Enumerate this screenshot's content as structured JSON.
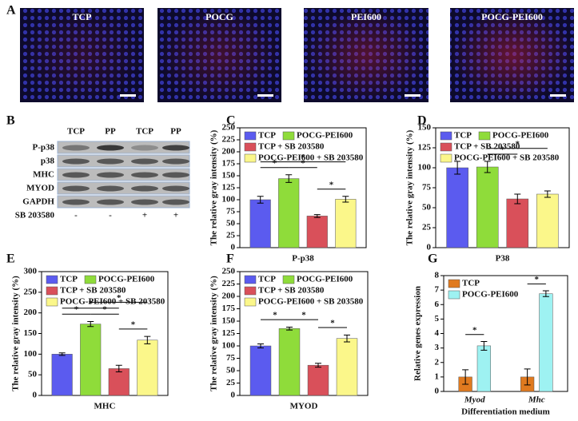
{
  "panel_letters": [
    "A",
    "B",
    "C",
    "D",
    "E",
    "F",
    "G"
  ],
  "images": [
    "TCP",
    "POCG",
    "PEI600",
    "POCG-PEI600"
  ],
  "blot": {
    "columns": [
      "TCP",
      "PP",
      "TCP",
      "PP"
    ],
    "rows": [
      "P-p38",
      "p38",
      "MHC",
      "MYOD",
      "GAPDH"
    ],
    "treatment": "SB 203580",
    "signs": [
      "-",
      "-",
      "+",
      "+"
    ]
  },
  "chart_data": [
    {
      "type": "bar",
      "x_label": "P-p38",
      "y_label": "The relative gray intensity (%)",
      "ylim": [
        0,
        250
      ],
      "yticks": [
        0,
        25,
        50,
        75,
        100,
        125,
        150,
        175,
        200,
        225,
        250
      ],
      "series": [
        {
          "name": "TCP",
          "color": "#5b5bef",
          "values": [
            100
          ],
          "errors": [
            7
          ]
        },
        {
          "name": "POCG-PEI600",
          "color": "#8fdc3a",
          "values": [
            144
          ],
          "errors": [
            8
          ]
        },
        {
          "name": "TCP + SB 203580",
          "color": "#d9505a",
          "values": [
            66
          ],
          "errors": [
            3
          ]
        },
        {
          "name": "POCG-PEI600 + SB 203580",
          "color": "#fbf78a",
          "values": [
            101
          ],
          "errors": [
            6
          ]
        }
      ],
      "significance": [
        {
          "label": "*",
          "between": [
            0,
            1
          ]
        },
        {
          "label": "*",
          "between": [
            1,
            2
          ]
        },
        {
          "label": "*",
          "between": [
            0,
            3
          ]
        },
        {
          "label": "*",
          "between": [
            2,
            3
          ]
        }
      ]
    },
    {
      "type": "bar",
      "x_label": "P38",
      "y_label": "The relative gray intensity (%)",
      "ylim": [
        0,
        150
      ],
      "yticks": [
        0,
        25,
        50,
        75,
        100,
        125,
        150
      ],
      "series": [
        {
          "name": "TCP",
          "color": "#5b5bef",
          "values": [
            100
          ],
          "errors": [
            8
          ]
        },
        {
          "name": "POCG-PEI600",
          "color": "#8fdc3a",
          "values": [
            101
          ],
          "errors": [
            7
          ]
        },
        {
          "name": "TCP + SB 203580",
          "color": "#d9505a",
          "values": [
            61
          ],
          "errors": [
            6
          ]
        },
        {
          "name": "POCG-PEI600 + SB 203580",
          "color": "#fbf78a",
          "values": [
            67
          ],
          "errors": [
            4
          ]
        }
      ],
      "significance": [
        {
          "label": "*",
          "between": [
            1,
            2
          ]
        },
        {
          "label": "*",
          "between": [
            1,
            3
          ]
        }
      ]
    },
    {
      "type": "bar",
      "x_label": "MHC",
      "y_label": "The relative gray intensity (%)",
      "ylim": [
        0,
        300
      ],
      "yticks": [
        0,
        50,
        100,
        150,
        200,
        250,
        300
      ],
      "series": [
        {
          "name": "TCP",
          "color": "#5b5bef",
          "values": [
            100
          ],
          "errors": [
            3
          ]
        },
        {
          "name": "POCG-PEI600",
          "color": "#8fdc3a",
          "values": [
            173
          ],
          "errors": [
            6
          ]
        },
        {
          "name": "TCP + SB 203580",
          "color": "#d9505a",
          "values": [
            65
          ],
          "errors": [
            8
          ]
        },
        {
          "name": "POCG-PEI600 + SB 203580",
          "color": "#fbf78a",
          "values": [
            134
          ],
          "errors": [
            9
          ]
        }
      ],
      "significance": [
        {
          "label": "*",
          "between": [
            0,
            1
          ]
        },
        {
          "label": "*",
          "between": [
            1,
            2
          ]
        },
        {
          "label": "*",
          "between": [
            0,
            2
          ]
        },
        {
          "label": "*",
          "between": [
            1,
            3
          ]
        },
        {
          "label": "*",
          "between": [
            2,
            3
          ]
        }
      ]
    },
    {
      "type": "bar",
      "x_label": "MYOD",
      "y_label": "The relative gray intensity (%)",
      "ylim": [
        0,
        250
      ],
      "yticks": [
        0,
        25,
        50,
        75,
        100,
        125,
        150,
        175,
        200,
        225,
        250
      ],
      "series": [
        {
          "name": "TCP",
          "color": "#5b5bef",
          "values": [
            100
          ],
          "errors": [
            4
          ]
        },
        {
          "name": "POCG-PEI600",
          "color": "#8fdc3a",
          "values": [
            135
          ],
          "errors": [
            3
          ]
        },
        {
          "name": "TCP + SB 203580",
          "color": "#d9505a",
          "values": [
            61
          ],
          "errors": [
            4
          ]
        },
        {
          "name": "POCG-PEI600 + SB 203580",
          "color": "#fbf78a",
          "values": [
            115
          ],
          "errors": [
            7
          ]
        }
      ],
      "significance": [
        {
          "label": "*",
          "between": [
            0,
            1
          ]
        },
        {
          "label": "*",
          "between": [
            1,
            2
          ]
        },
        {
          "label": "*",
          "between": [
            2,
            3
          ]
        }
      ]
    },
    {
      "type": "bar",
      "x_label": "Differentiation medium",
      "y_label": "Relative genes expression",
      "ylim": [
        0,
        8
      ],
      "yticks": [
        0,
        1,
        2,
        3,
        4,
        5,
        6,
        7,
        8
      ],
      "categories": [
        "Myod",
        "Mhc"
      ],
      "series": [
        {
          "name": "TCP",
          "color": "#e07a1f",
          "values": [
            1,
            1
          ],
          "errors": [
            0.5,
            0.55
          ]
        },
        {
          "name": "POCG-PEI600",
          "color": "#9ef2f2",
          "values": [
            3.15,
            6.75
          ],
          "errors": [
            0.3,
            0.2
          ]
        }
      ],
      "significance": [
        {
          "label": "*",
          "between": [
            0,
            1
          ],
          "category": 0
        },
        {
          "label": "*",
          "between": [
            0,
            1
          ],
          "category": 1
        }
      ]
    }
  ]
}
